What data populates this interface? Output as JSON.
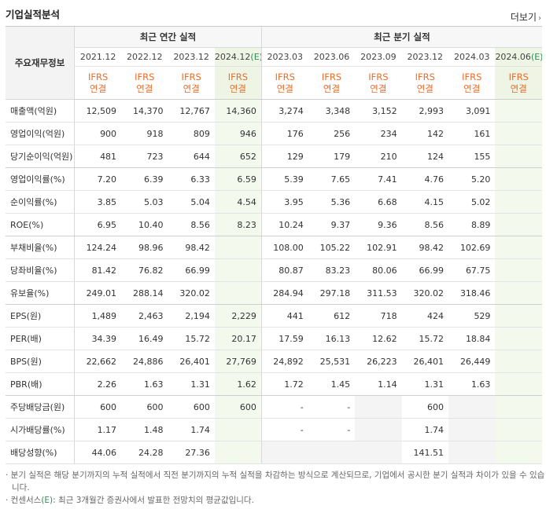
{
  "header": {
    "title": "기업실적분석",
    "more_label": "더보기"
  },
  "table": {
    "row_header": "주요재무정보",
    "annual_label": "최근 연간 실적",
    "quarter_label": "최근 분기 실적",
    "annual_periods": [
      "2021.12",
      "2022.12",
      "2023.12",
      "2024.12"
    ],
    "annual_estimate_mark": "(E)",
    "quarter_periods": [
      "2023.03",
      "2023.06",
      "2023.09",
      "2023.12",
      "2024.03",
      "2024.06"
    ],
    "quarter_estimate_mark": "(E)",
    "std_line1": "IFRS",
    "std_line2": "연결",
    "rows": [
      {
        "label": "매출액(억원)",
        "values": [
          "12,509",
          "14,370",
          "12,767",
          "14,360",
          "3,274",
          "3,348",
          "3,152",
          "2,993",
          "3,091",
          ""
        ]
      },
      {
        "label": "영업이익(억원)",
        "values": [
          "900",
          "918",
          "809",
          "946",
          "176",
          "256",
          "234",
          "142",
          "161",
          ""
        ]
      },
      {
        "label": "당기순이익(억원)",
        "values": [
          "481",
          "723",
          "644",
          "652",
          "129",
          "179",
          "210",
          "124",
          "155",
          ""
        ]
      },
      {
        "label": "영업이익률(%)",
        "values": [
          "7.20",
          "6.39",
          "6.33",
          "6.59",
          "5.39",
          "7.65",
          "7.41",
          "4.76",
          "5.20",
          ""
        ]
      },
      {
        "label": "순이익률(%)",
        "values": [
          "3.85",
          "5.03",
          "5.04",
          "4.54",
          "3.95",
          "5.36",
          "6.68",
          "4.15",
          "5.02",
          ""
        ]
      },
      {
        "label": "ROE(%)",
        "values": [
          "6.95",
          "10.40",
          "8.56",
          "8.23",
          "10.24",
          "9.37",
          "9.36",
          "8.56",
          "8.89",
          ""
        ]
      },
      {
        "label": "부채비율(%)",
        "values": [
          "124.24",
          "98.96",
          "98.42",
          "",
          "108.00",
          "105.22",
          "102.91",
          "98.42",
          "102.69",
          ""
        ]
      },
      {
        "label": "당좌비율(%)",
        "values": [
          "81.42",
          "76.82",
          "66.99",
          "",
          "80.87",
          "83.23",
          "80.06",
          "66.99",
          "67.75",
          ""
        ]
      },
      {
        "label": "유보율(%)",
        "values": [
          "249.01",
          "288.14",
          "320.02",
          "",
          "284.94",
          "297.18",
          "311.53",
          "320.02",
          "318.46",
          ""
        ]
      },
      {
        "label": "EPS(원)",
        "values": [
          "1,489",
          "2,463",
          "2,194",
          "2,229",
          "441",
          "612",
          "718",
          "424",
          "529",
          ""
        ]
      },
      {
        "label": "PER(배)",
        "values": [
          "34.39",
          "16.49",
          "15.72",
          "20.17",
          "17.59",
          "16.13",
          "12.62",
          "15.72",
          "18.84",
          ""
        ]
      },
      {
        "label": "BPS(원)",
        "values": [
          "22,662",
          "24,886",
          "26,401",
          "27,769",
          "24,892",
          "25,531",
          "26,223",
          "26,401",
          "26,449",
          ""
        ]
      },
      {
        "label": "PBR(배)",
        "values": [
          "2.26",
          "1.63",
          "1.31",
          "1.62",
          "1.72",
          "1.45",
          "1.14",
          "1.31",
          "1.63",
          ""
        ]
      },
      {
        "label": "주당배당금(원)",
        "values": [
          "600",
          "600",
          "600",
          "600",
          "-",
          "-",
          "",
          "600",
          "",
          ""
        ]
      },
      {
        "label": "시가배당률(%)",
        "values": [
          "1.17",
          "1.48",
          "1.74",
          "",
          "-",
          "-",
          "",
          "1.74",
          "",
          ""
        ]
      },
      {
        "label": "배당성향(%)",
        "values": [
          "44.06",
          "24.28",
          "27.36",
          "",
          "",
          "",
          "",
          "141.51",
          "",
          ""
        ]
      }
    ]
  },
  "notes": {
    "line1": "· 분기 실적은 해당 분기까지의 누적 실적에서 직전 분기까지의 누적 실적을 차감하는 방식으로 계산되므로, 기업에서 공시한 분기 실적과 차이가 있을 수 있습니다.",
    "line2_prefix": "· 컨센서스",
    "line2_mark": "(E)",
    "line2_rest": ": 최근 3개월간 증권사에서 발표한 전망치의 평균값입니다."
  },
  "colors": {
    "ifrs_orange": "#e86d2a",
    "estimate_bg": "#f4f9ee",
    "empty_bg": "#f4f4f4"
  }
}
